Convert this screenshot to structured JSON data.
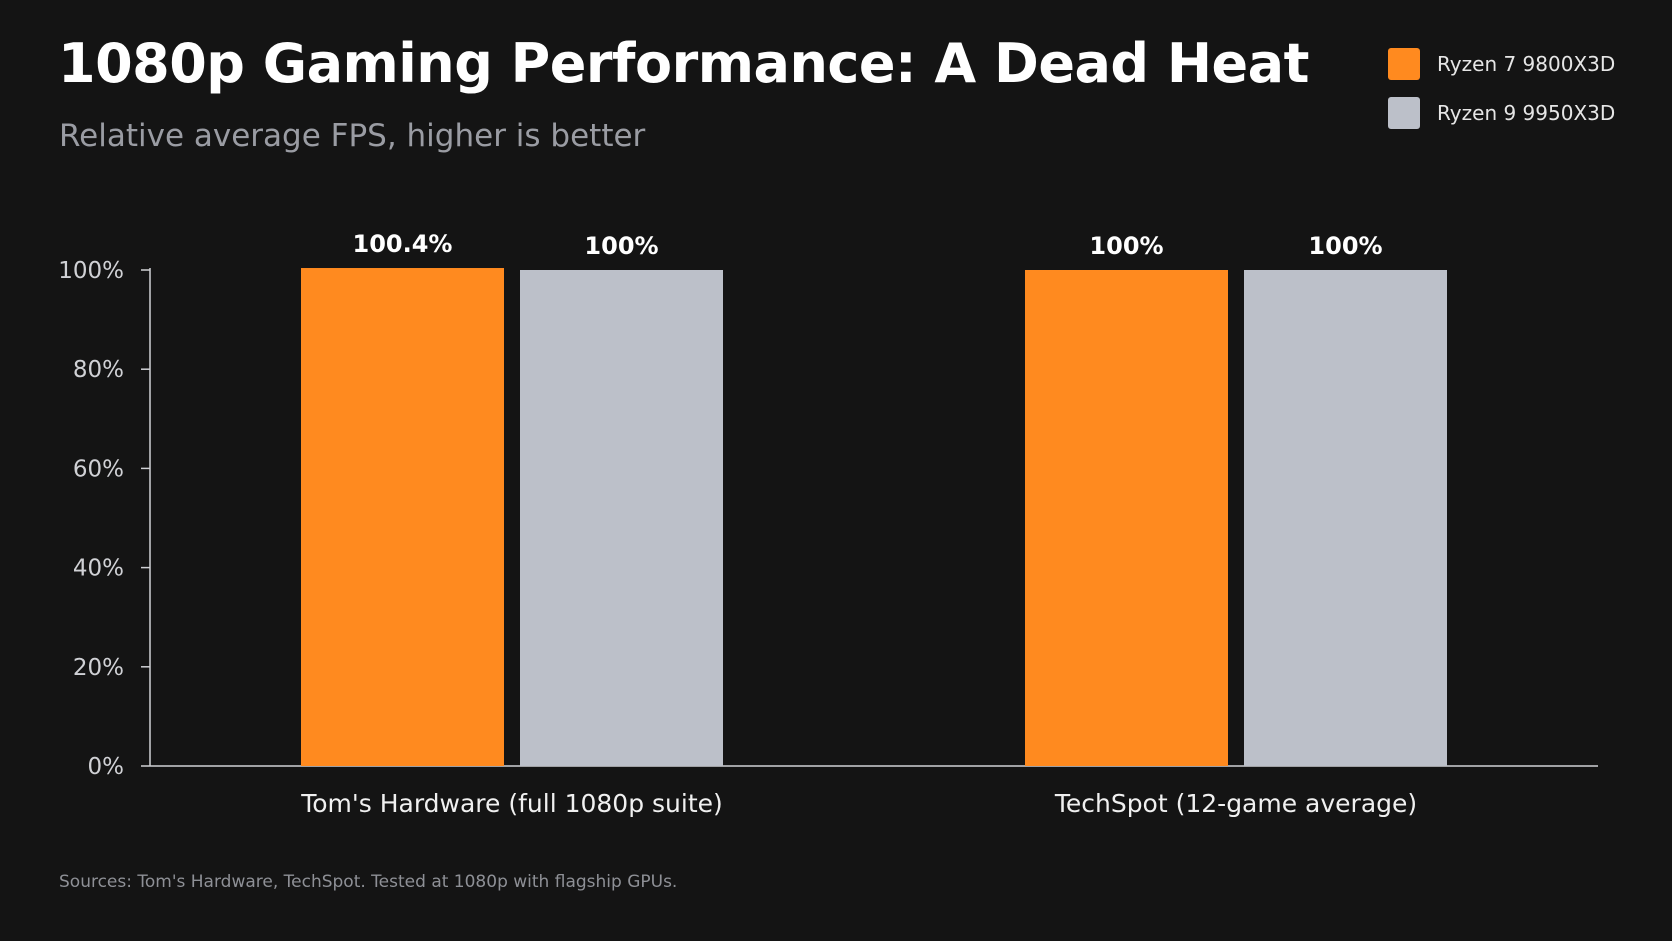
{
  "title": "1080p Gaming Performance: A Dead Heat",
  "subtitle": "Relative average FPS, higher is better",
  "footer": "Sources: Tom's Hardware, TechSpot. Tested at 1080p with flagship GPUs.",
  "legend": [
    {
      "label": "Ryzen 7 9800X3D",
      "color": "#ff8a1f"
    },
    {
      "label": "Ryzen 9 9950X3D",
      "color": "#bcc0c9"
    }
  ],
  "chart_data": {
    "type": "bar",
    "title": "1080p Gaming Performance: A Dead Heat",
    "subtitle": "Relative average FPS, higher is better",
    "categories": [
      "Tom's Hardware (full 1080p suite)",
      "TechSpot (12-game average)"
    ],
    "series": [
      {
        "name": "Ryzen 7 9800X3D",
        "color": "#ff8a1f",
        "values": [
          100.4,
          100
        ],
        "labels": [
          "100.4%",
          "100%"
        ]
      },
      {
        "name": "Ryzen 9 9950X3D",
        "color": "#bcc0c9",
        "values": [
          100,
          100
        ],
        "labels": [
          "100%",
          "100%"
        ]
      }
    ],
    "ylim": [
      0,
      100
    ],
    "yticks": [
      0,
      20,
      40,
      60,
      80,
      100
    ],
    "ytick_labels": [
      "0%",
      "20%",
      "40%",
      "60%",
      "80%",
      "100%"
    ],
    "xlabel": "",
    "ylabel": "",
    "grid": false,
    "legend_position": "top-right"
  }
}
